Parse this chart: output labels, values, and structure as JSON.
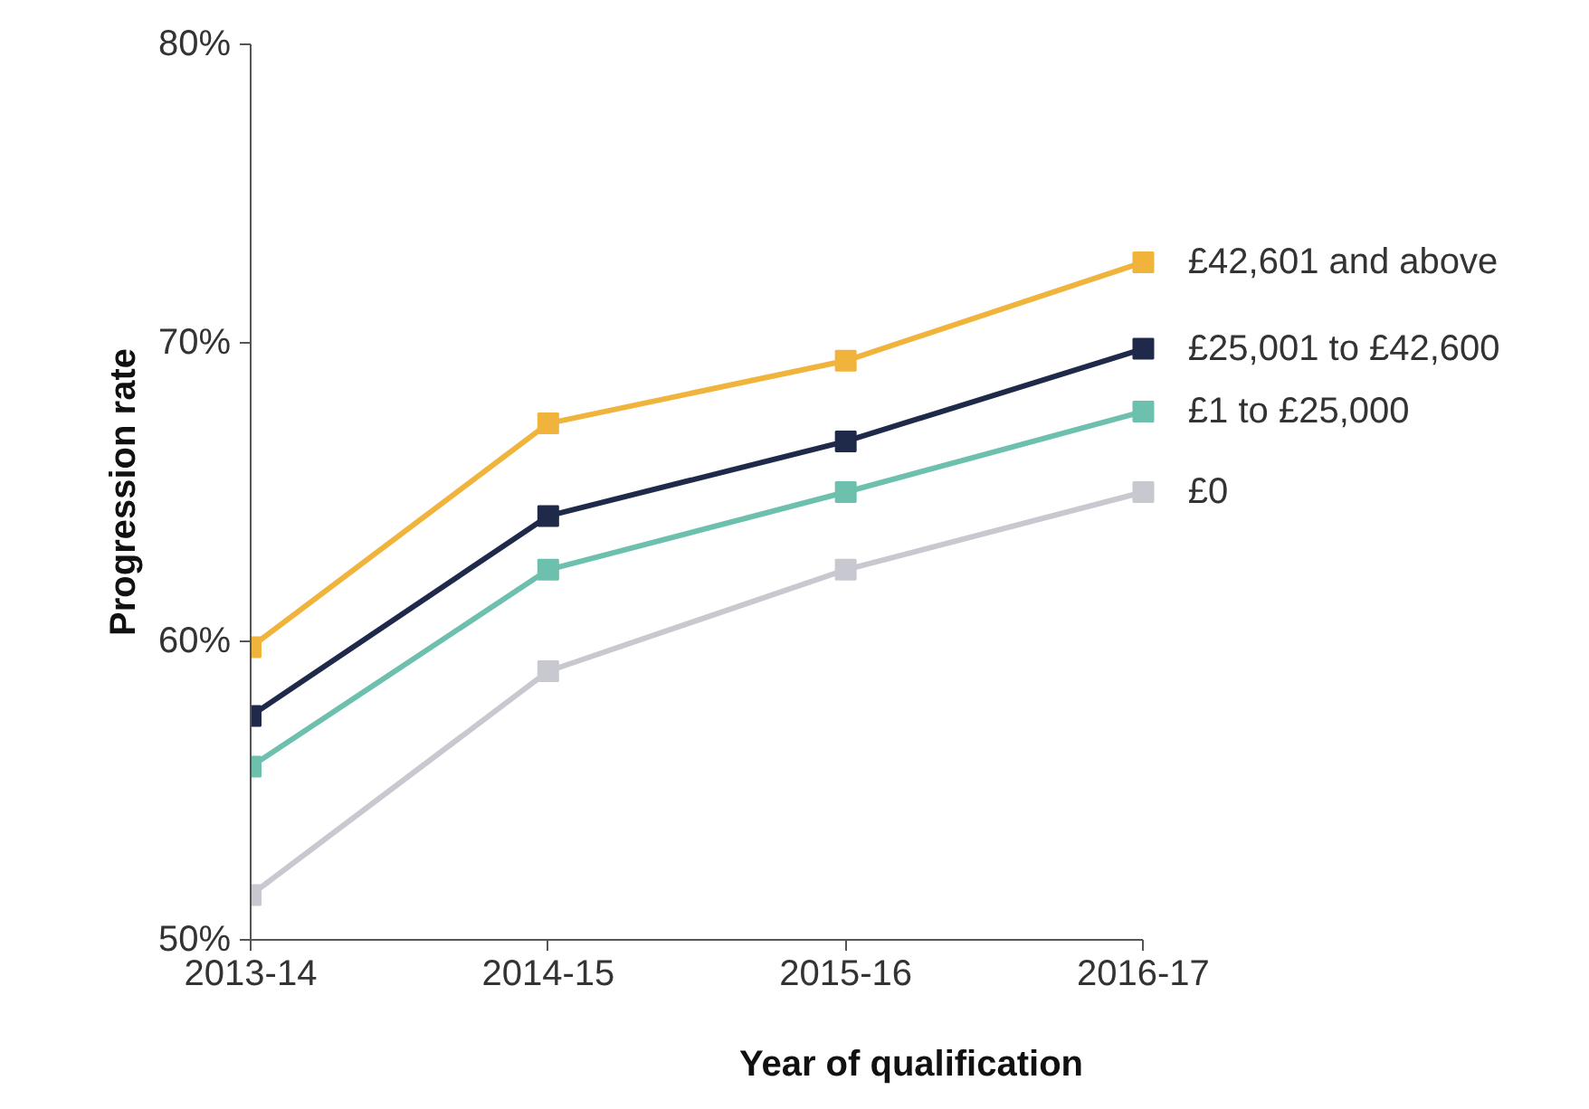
{
  "chart_data": {
    "type": "line",
    "xlabel": "Year of qualification",
    "ylabel": "Progression rate",
    "categories": [
      "2013-14",
      "2014-15",
      "2015-16",
      "2016-17"
    ],
    "ylim": [
      50,
      80
    ],
    "yticks": [
      {
        "value": 50,
        "label": "50%"
      },
      {
        "value": 60,
        "label": "60%"
      },
      {
        "value": 70,
        "label": "70%"
      },
      {
        "value": 80,
        "label": "80%"
      }
    ],
    "grid": false,
    "legend": false,
    "marker": "square",
    "line_style": "solid",
    "series": [
      {
        "name": "£42,601 and above",
        "color": "#f0b43c",
        "values": [
          59.8,
          67.3,
          69.4,
          72.7
        ]
      },
      {
        "name": "£25,001 to £42,600",
        "color": "#1f2a4a",
        "values": [
          57.5,
          64.2,
          66.7,
          69.8
        ]
      },
      {
        "name": "£1 to £25,000",
        "color": "#6cc0ad",
        "values": [
          55.8,
          62.4,
          65.0,
          67.7
        ]
      },
      {
        "name": "£0",
        "color": "#c8c8d0",
        "values": [
          51.5,
          59.0,
          62.4,
          65.0
        ]
      }
    ]
  }
}
